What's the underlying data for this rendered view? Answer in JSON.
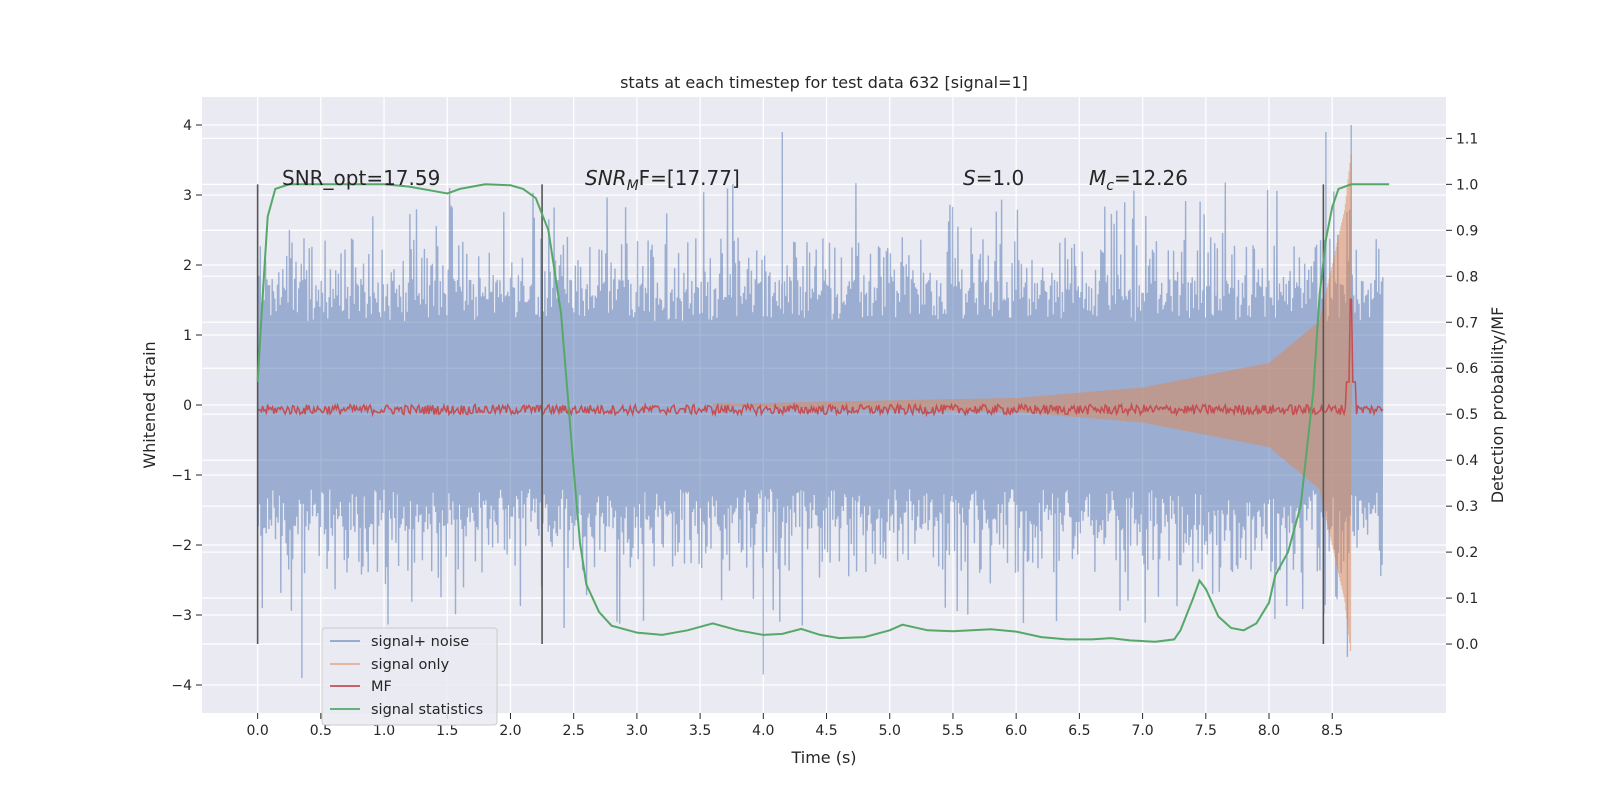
{
  "chart_data": {
    "type": "line",
    "title": "stats at each timestep for test data 632 [signal=1]",
    "xlabel": "Time (s)",
    "ylabel_left": "Whitened strain",
    "ylabel_right": "Detection probability/MF",
    "xlim": [
      -0.44,
      9.4
    ],
    "ylim_left": [
      -4.4,
      4.4
    ],
    "ylim_right": [
      -0.15,
      1.19
    ],
    "x_ticks": [
      "0.0",
      "0.5",
      "1.0",
      "1.5",
      "2.0",
      "2.5",
      "3.0",
      "3.5",
      "4.0",
      "4.5",
      "5.0",
      "5.5",
      "6.0",
      "6.5",
      "7.0",
      "7.5",
      "8.0",
      "8.5"
    ],
    "y_ticks_left": [
      "4",
      "3",
      "2",
      "1",
      "0",
      "−1",
      "−2",
      "−3",
      "−4"
    ],
    "y_ticks_right": [
      "1.1",
      "1.0",
      "0.9",
      "0.8",
      "0.7",
      "0.6",
      "0.5",
      "0.4",
      "0.3",
      "0.2",
      "0.1",
      "0.0"
    ],
    "grid": true,
    "annotations": {
      "snr_opt": "SNR_opt=17.59",
      "snr_mf_main": "SNR",
      "snr_mf_sub": "M",
      "snr_mf_rest": "F=[17.77]",
      "s_italic": "S",
      "s_rest": "=1.0",
      "mc_main": "M",
      "mc_sub": "c",
      "mc_rest": "=12.26"
    },
    "vertical_markers": [
      0.0,
      2.25,
      8.43
    ],
    "series": [
      {
        "name": "signal+ noise",
        "color": "#4c72b0",
        "axis": "left",
        "description": "whitened strain, noise envelope roughly ±2.2 with spikes to ±4",
        "typical_envelope": 2.2,
        "peak_points": [
          {
            "t": 0.35,
            "v": -3.9
          },
          {
            "t": 4.0,
            "v": -3.85
          },
          {
            "t": 4.15,
            "v": 3.9
          },
          {
            "t": 8.45,
            "v": 3.9
          },
          {
            "t": 8.65,
            "v": 4.0
          },
          {
            "t": 8.62,
            "v": -3.6
          }
        ]
      },
      {
        "name": "signal only",
        "color": "#dd8452",
        "axis": "left",
        "description": "chirp signal growing in amplitude up to merger near t=8.65",
        "merger_time": 8.65,
        "amplitude_at": [
          {
            "t": 4.5,
            "a": 0.05
          },
          {
            "t": 6.0,
            "a": 0.1
          },
          {
            "t": 7.0,
            "a": 0.25
          },
          {
            "t": 8.0,
            "a": 0.6
          },
          {
            "t": 8.4,
            "a": 1.2
          },
          {
            "t": 8.6,
            "a": 2.8
          },
          {
            "t": 8.65,
            "a": 3.6
          }
        ]
      },
      {
        "name": "MF",
        "color": "#c44e52",
        "axis": "right",
        "baseline": 0.51,
        "peak": {
          "t": 8.65,
          "v": 0.75
        }
      },
      {
        "name": "signal statistics",
        "color": "#55a868",
        "axis": "right",
        "points": [
          [
            0.0,
            0.57
          ],
          [
            0.05,
            0.8
          ],
          [
            0.08,
            0.93
          ],
          [
            0.14,
            0.99
          ],
          [
            0.25,
            1.0
          ],
          [
            0.6,
            1.0
          ],
          [
            1.0,
            1.0
          ],
          [
            1.2,
            0.995
          ],
          [
            1.4,
            0.985
          ],
          [
            1.5,
            0.98
          ],
          [
            1.6,
            0.99
          ],
          [
            1.8,
            1.0
          ],
          [
            2.0,
            0.998
          ],
          [
            2.1,
            0.99
          ],
          [
            2.2,
            0.97
          ],
          [
            2.3,
            0.9
          ],
          [
            2.4,
            0.72
          ],
          [
            2.45,
            0.55
          ],
          [
            2.5,
            0.38
          ],
          [
            2.55,
            0.22
          ],
          [
            2.6,
            0.13
          ],
          [
            2.7,
            0.07
          ],
          [
            2.8,
            0.04
          ],
          [
            3.0,
            0.025
          ],
          [
            3.2,
            0.02
          ],
          [
            3.4,
            0.03
          ],
          [
            3.6,
            0.045
          ],
          [
            3.8,
            0.03
          ],
          [
            4.0,
            0.02
          ],
          [
            4.15,
            0.022
          ],
          [
            4.3,
            0.033
          ],
          [
            4.45,
            0.02
          ],
          [
            4.6,
            0.013
          ],
          [
            4.8,
            0.015
          ],
          [
            5.0,
            0.03
          ],
          [
            5.1,
            0.042
          ],
          [
            5.3,
            0.03
          ],
          [
            5.5,
            0.028
          ],
          [
            5.8,
            0.032
          ],
          [
            6.0,
            0.027
          ],
          [
            6.2,
            0.015
          ],
          [
            6.4,
            0.01
          ],
          [
            6.6,
            0.01
          ],
          [
            6.75,
            0.013
          ],
          [
            6.9,
            0.008
          ],
          [
            7.1,
            0.005
          ],
          [
            7.25,
            0.01
          ],
          [
            7.3,
            0.03
          ],
          [
            7.4,
            0.1
          ],
          [
            7.45,
            0.138
          ],
          [
            7.5,
            0.12
          ],
          [
            7.6,
            0.06
          ],
          [
            7.7,
            0.035
          ],
          [
            7.8,
            0.03
          ],
          [
            7.9,
            0.045
          ],
          [
            8.0,
            0.09
          ],
          [
            8.05,
            0.15
          ],
          [
            8.15,
            0.2
          ],
          [
            8.25,
            0.3
          ],
          [
            8.35,
            0.55
          ],
          [
            8.4,
            0.76
          ],
          [
            8.45,
            0.88
          ],
          [
            8.5,
            0.95
          ],
          [
            8.55,
            0.99
          ],
          [
            8.65,
            1.0
          ],
          [
            8.95,
            1.0
          ]
        ]
      }
    ],
    "legend": {
      "placement": "lower-left",
      "entries": [
        {
          "label": "signal+ noise",
          "color": "#4c72b0"
        },
        {
          "label": "signal only",
          "color": "#dd8452"
        },
        {
          "label": "MF",
          "color": "#c44e52"
        },
        {
          "label": "signal statistics",
          "color": "#55a868"
        }
      ]
    },
    "colors": {
      "plot_background": "#eaeaf2",
      "grid": "#ffffff",
      "marker_line": "#555555"
    }
  }
}
